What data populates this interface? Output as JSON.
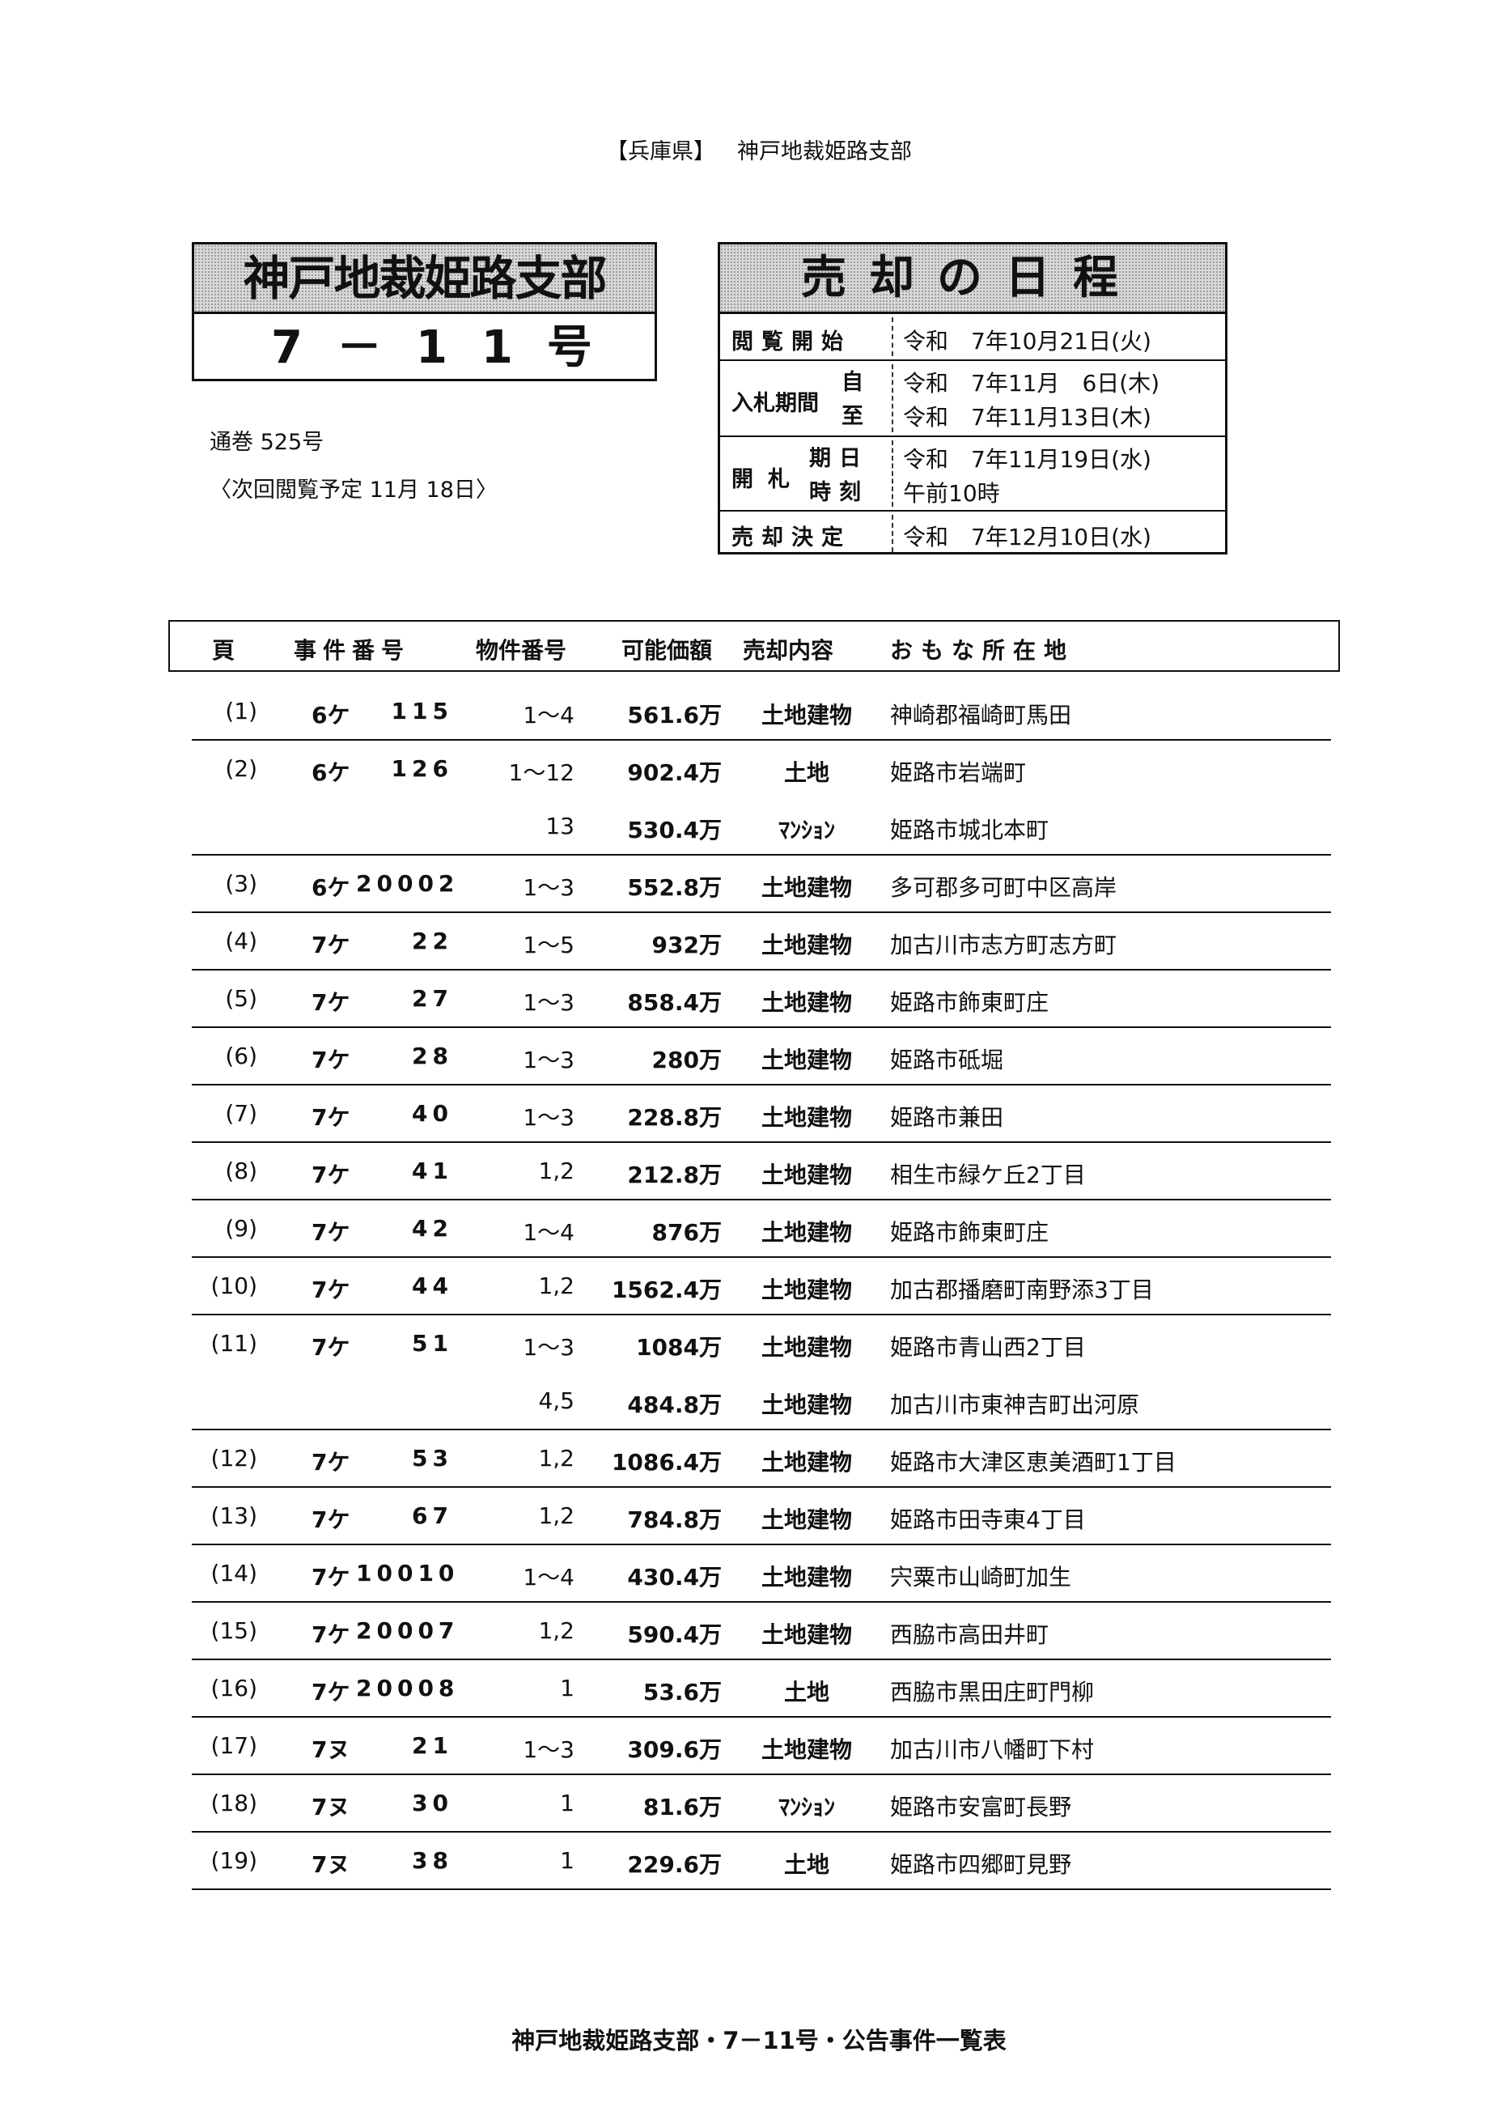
{
  "header": {
    "prefecture": "【兵庫県】",
    "court": "神戸地裁姫路支部"
  },
  "branch_box": {
    "title": "神戸地裁姫路支部",
    "issue": "7－11号"
  },
  "notes": {
    "volume": "通巻 525号",
    "next_viewing": "〈次回閲覧予定 11月 18日〉"
  },
  "schedule": {
    "title": "売却の日程",
    "viewing_start": {
      "label": "閲覧開始",
      "value": "令和　7年10月21日(火)"
    },
    "bidding_period": {
      "label": "入札期間",
      "from_label": "自",
      "from": "令和　7年11月　6日(木)",
      "to_label": "至",
      "to": "令和　7年11月13日(木)"
    },
    "opening": {
      "label": "開札",
      "date_label": "期日",
      "date": "令和　7年11月19日(水)",
      "time_label": "時刻",
      "time": "午前10時"
    },
    "decision": {
      "label": "売却決定",
      "value": "令和　7年12月10日(水)"
    }
  },
  "table": {
    "headers": [
      "頁",
      "事件番号",
      "物件番号",
      "可能価額",
      "売却内容",
      "おもな所在地"
    ],
    "rows": [
      {
        "page": "(1)",
        "prefix": "6ケ",
        "case_no": "115",
        "items": "1～4",
        "price": "561.6万",
        "type": "土地建物",
        "location": "神崎郡福崎町馬田",
        "rule": true
      },
      {
        "page": "(2)",
        "prefix": "6ケ",
        "case_no": "126",
        "items": "1～12",
        "price": "902.4万",
        "type": "土地",
        "location": "姫路市岩端町",
        "rule": false
      },
      {
        "page": "",
        "prefix": "",
        "case_no": "",
        "items": "13",
        "price": "530.4万",
        "type": "ﾏﾝｼｮﾝ",
        "location": "姫路市城北本町",
        "rule": true
      },
      {
        "page": "(3)",
        "prefix": "6ケ",
        "case_no": "20002",
        "items": "1～3",
        "price": "552.8万",
        "type": "土地建物",
        "location": "多可郡多可町中区高岸",
        "rule": true
      },
      {
        "page": "(4)",
        "prefix": "7ケ",
        "case_no": "22",
        "items": "1～5",
        "price": "932万",
        "type": "土地建物",
        "location": "加古川市志方町志方町",
        "rule": true
      },
      {
        "page": "(5)",
        "prefix": "7ケ",
        "case_no": "27",
        "items": "1～3",
        "price": "858.4万",
        "type": "土地建物",
        "location": "姫路市飾東町庄",
        "rule": true
      },
      {
        "page": "(6)",
        "prefix": "7ケ",
        "case_no": "28",
        "items": "1～3",
        "price": "280万",
        "type": "土地建物",
        "location": "姫路市砥堀",
        "rule": true
      },
      {
        "page": "(7)",
        "prefix": "7ケ",
        "case_no": "40",
        "items": "1～3",
        "price": "228.8万",
        "type": "土地建物",
        "location": "姫路市兼田",
        "rule": true
      },
      {
        "page": "(8)",
        "prefix": "7ケ",
        "case_no": "41",
        "items": "1,2",
        "price": "212.8万",
        "type": "土地建物",
        "location": "相生市緑ケ丘2丁目",
        "rule": true
      },
      {
        "page": "(9)",
        "prefix": "7ケ",
        "case_no": "42",
        "items": "1～4",
        "price": "876万",
        "type": "土地建物",
        "location": "姫路市飾東町庄",
        "rule": true
      },
      {
        "page": "(10)",
        "prefix": "7ケ",
        "case_no": "44",
        "items": "1,2",
        "price": "1562.4万",
        "type": "土地建物",
        "location": "加古郡播磨町南野添3丁目",
        "rule": true
      },
      {
        "page": "(11)",
        "prefix": "7ケ",
        "case_no": "51",
        "items": "1～3",
        "price": "1084万",
        "type": "土地建物",
        "location": "姫路市青山西2丁目",
        "rule": false
      },
      {
        "page": "",
        "prefix": "",
        "case_no": "",
        "items": "4,5",
        "price": "484.8万",
        "type": "土地建物",
        "location": "加古川市東神吉町出河原",
        "rule": true
      },
      {
        "page": "(12)",
        "prefix": "7ケ",
        "case_no": "53",
        "items": "1,2",
        "price": "1086.4万",
        "type": "土地建物",
        "location": "姫路市大津区恵美酒町1丁目",
        "rule": true
      },
      {
        "page": "(13)",
        "prefix": "7ケ",
        "case_no": "67",
        "items": "1,2",
        "price": "784.8万",
        "type": "土地建物",
        "location": "姫路市田寺東4丁目",
        "rule": true
      },
      {
        "page": "(14)",
        "prefix": "7ケ",
        "case_no": "10010",
        "items": "1～4",
        "price": "430.4万",
        "type": "土地建物",
        "location": "宍粟市山崎町加生",
        "rule": true
      },
      {
        "page": "(15)",
        "prefix": "7ケ",
        "case_no": "20007",
        "items": "1,2",
        "price": "590.4万",
        "type": "土地建物",
        "location": "西脇市高田井町",
        "rule": true
      },
      {
        "page": "(16)",
        "prefix": "7ケ",
        "case_no": "20008",
        "items": "1",
        "price": "53.6万",
        "type": "土地",
        "location": "西脇市黒田庄町門柳",
        "rule": true
      },
      {
        "page": "(17)",
        "prefix": "7ヌ",
        "case_no": "21",
        "items": "1～3",
        "price": "309.6万",
        "type": "土地建物",
        "location": "加古川市八幡町下村",
        "rule": true
      },
      {
        "page": "(18)",
        "prefix": "7ヌ",
        "case_no": "30",
        "items": "1",
        "price": "81.6万",
        "type": "ﾏﾝｼｮﾝ",
        "location": "姫路市安富町長野",
        "rule": true
      },
      {
        "page": "(19)",
        "prefix": "7ヌ",
        "case_no": "38",
        "items": "1",
        "price": "229.6万",
        "type": "土地",
        "location": "姫路市四郷町見野",
        "rule": true
      }
    ]
  },
  "footer": "神戸地裁姫路支部・7－11号・公告事件一覧表"
}
